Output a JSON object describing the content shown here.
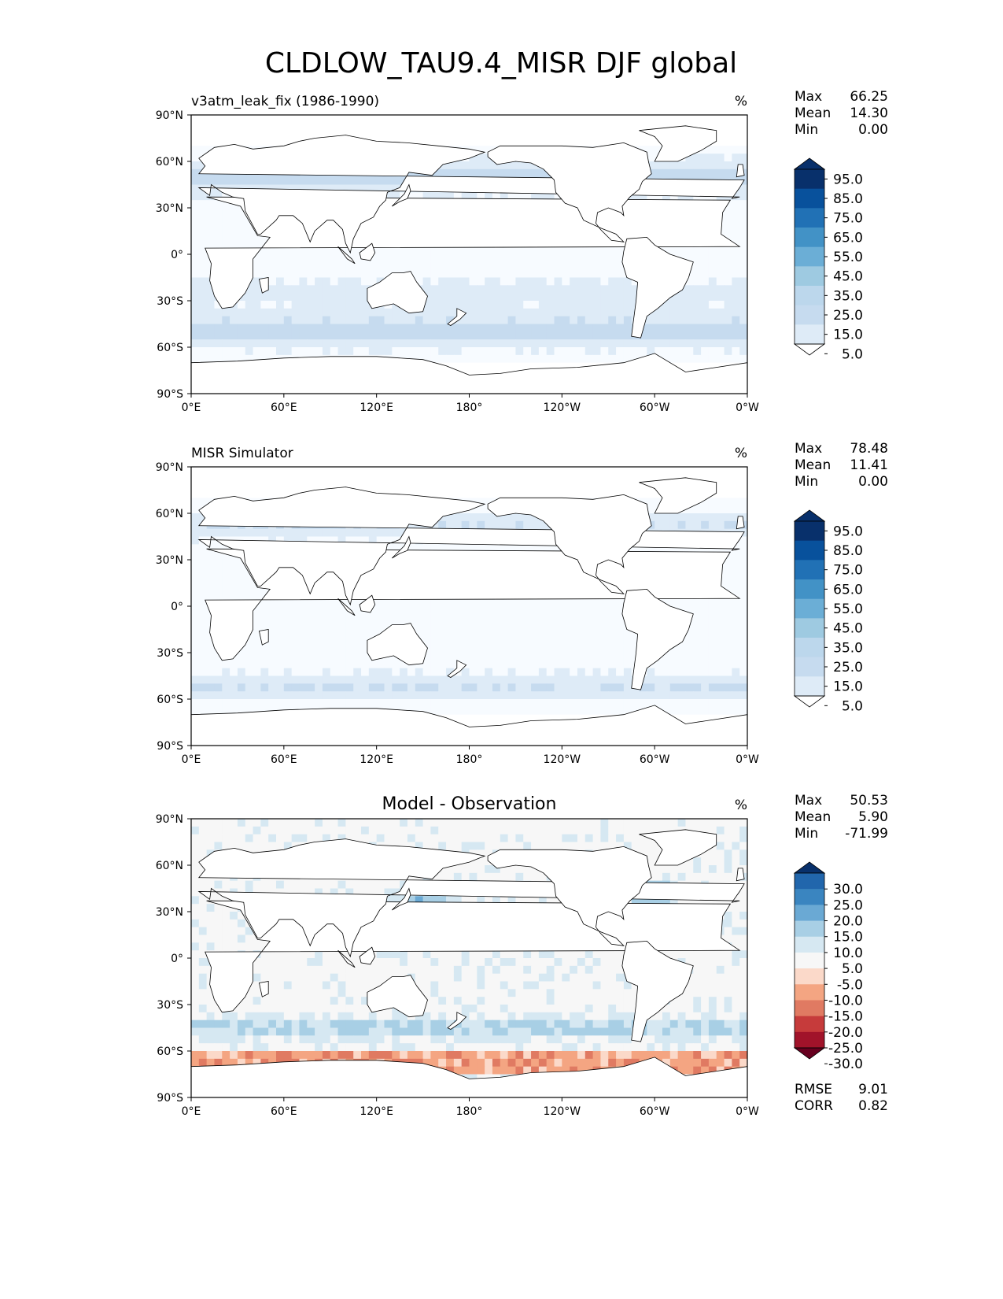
{
  "figure": {
    "title": "CLDLOW_TAU9.4_MISR DJF global"
  },
  "chart_data": [
    {
      "type": "heatmap",
      "panel": "test",
      "title": "v3atm_leak_fix (1986-1990)",
      "title_position": "left",
      "units": "%",
      "stats": [
        {
          "label": "Max",
          "value": "66.25"
        },
        {
          "label": "Mean",
          "value": "14.30"
        },
        {
          "label": "Min",
          "value": "0.00"
        }
      ],
      "colorbar": {
        "levels": [
          "95.0",
          "85.0",
          "75.0",
          "65.0",
          "55.0",
          "45.0",
          "35.0",
          "25.0",
          "15.0",
          "5.0"
        ],
        "colors": [
          "#08306b",
          "#08519c",
          "#2171b5",
          "#4292c6",
          "#6baed6",
          "#9ecae1",
          "#bcd7ec",
          "#c6dbef",
          "#deebf7",
          "#f7fbff"
        ],
        "extend": "both"
      },
      "xticks": [
        "0°E",
        "60°E",
        "120°E",
        "180°",
        "120°W",
        "60°W",
        "0°W"
      ],
      "yticks": [
        "90°N",
        "60°N",
        "30°N",
        "0°",
        "30°S",
        "60°S",
        "90°S"
      ],
      "xlim": [
        0,
        360
      ],
      "ylim": [
        -90,
        90
      ]
    },
    {
      "type": "heatmap",
      "panel": "reference",
      "title": "MISR Simulator",
      "title_position": "left",
      "units": "%",
      "stats": [
        {
          "label": "Max",
          "value": "78.48"
        },
        {
          "label": "Mean",
          "value": "11.41"
        },
        {
          "label": "Min",
          "value": "0.00"
        }
      ],
      "colorbar": {
        "levels": [
          "95.0",
          "85.0",
          "75.0",
          "65.0",
          "55.0",
          "45.0",
          "35.0",
          "25.0",
          "15.0",
          "5.0"
        ],
        "colors": [
          "#08306b",
          "#08519c",
          "#2171b5",
          "#4292c6",
          "#6baed6",
          "#9ecae1",
          "#bcd7ec",
          "#c6dbef",
          "#deebf7",
          "#f7fbff"
        ],
        "extend": "both"
      },
      "xticks": [
        "0°E",
        "60°E",
        "120°E",
        "180°",
        "120°W",
        "60°W",
        "0°W"
      ],
      "yticks": [
        "90°N",
        "60°N",
        "30°N",
        "0°",
        "30°S",
        "60°S",
        "90°S"
      ],
      "xlim": [
        0,
        360
      ],
      "ylim": [
        -90,
        90
      ]
    },
    {
      "type": "heatmap",
      "panel": "difference",
      "title": "Model - Observation",
      "title_position": "center",
      "units": "%",
      "stats": [
        {
          "label": "Max",
          "value": "50.53"
        },
        {
          "label": "Mean",
          "value": "5.90"
        },
        {
          "label": "Min",
          "value": "-71.99"
        }
      ],
      "metrics": [
        {
          "label": "RMSE",
          "value": "9.01"
        },
        {
          "label": "CORR",
          "value": "0.82"
        }
      ],
      "colorbar": {
        "levels": [
          "30.0",
          "25.0",
          "20.0",
          "15.0",
          "10.0",
          "5.0",
          "-5.0",
          "-10.0",
          "-15.0",
          "-20.0",
          "-25.0",
          "-30.0"
        ],
        "colors": [
          "#08306b",
          "#2166ac",
          "#3a85c0",
          "#6aa9d4",
          "#a8cfe5",
          "#d6e8f2",
          "#f7f7f7",
          "#fbd9c9",
          "#f4a582",
          "#e07a62",
          "#c63b3b",
          "#a1132a",
          "#67001f"
        ],
        "extend": "both"
      },
      "xticks": [
        "0°E",
        "60°E",
        "120°E",
        "180°",
        "120°W",
        "60°W",
        "0°W"
      ],
      "yticks": [
        "90°N",
        "60°N",
        "30°N",
        "0°",
        "30°S",
        "60°S",
        "90°S"
      ],
      "xlim": [
        0,
        360
      ],
      "ylim": [
        -90,
        90
      ]
    }
  ]
}
